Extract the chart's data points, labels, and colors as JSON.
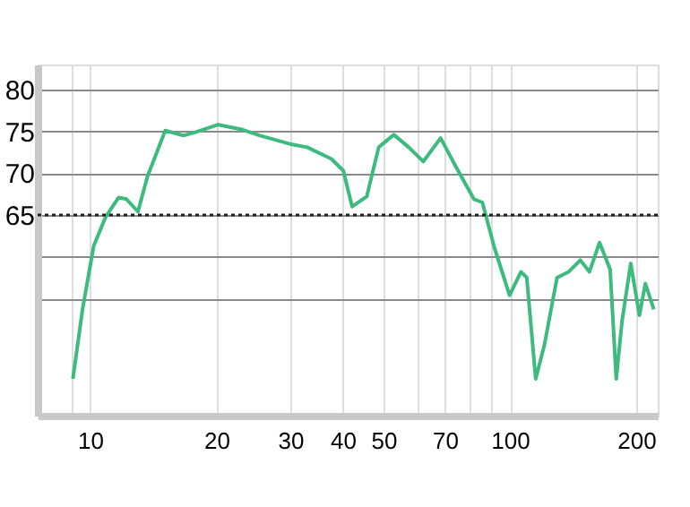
{
  "chart_data": {
    "type": "line",
    "xlim": [
      7.5,
      225
    ],
    "ylim": [
      41,
      83
    ],
    "log": "x",
    "grid": true,
    "marker": "none",
    "line_style": "solid",
    "xticks": [
      {
        "value": 9,
        "label": null
      },
      10,
      20,
      30,
      40,
      50,
      {
        "value": 60,
        "label": null
      },
      70,
      {
        "value": 80,
        "label": null
      },
      {
        "value": 90,
        "label": null
      },
      100,
      200
    ],
    "yticks": [
      {
        "value": 55,
        "label": null
      },
      {
        "value": 60,
        "label": null
      },
      65,
      70,
      75,
      80
    ],
    "ref_lines": [
      {
        "axis": "y",
        "value": 65,
        "label": null,
        "color": "#222222",
        "line_style": "dotted"
      }
    ],
    "series": [
      {
        "color": "#3dbb7f",
        "x": [
          9.1,
          9.6,
          10.2,
          10.9,
          11.7,
          12.2,
          13.0,
          13.7,
          15.1,
          16.7,
          17.8,
          20.2,
          23.1,
          25.4,
          29.9,
          32.9,
          37.6,
          40.1,
          42.1,
          45.6,
          48.7,
          52.9,
          57.4,
          62.2,
          68.4,
          74.5,
          82.1,
          86.0,
          91.6,
          99.8,
          106.3,
          109.7,
          115.2,
          120.9,
          129.5,
          138.0,
          147.2,
          154.7,
          163.5,
          173.3,
          179.2,
          185.0,
          194.0,
          203.5,
          210.2,
          220.2
        ],
        "values": [
          45.4,
          53.8,
          61.3,
          64.8,
          67.1,
          66.9,
          65.4,
          69.6,
          75.1,
          74.5,
          74.9,
          75.8,
          75.2,
          74.5,
          73.5,
          73.1,
          71.7,
          70.3,
          66.0,
          67.2,
          73.1,
          74.6,
          73.1,
          71.4,
          74.2,
          70.7,
          66.9,
          66.5,
          61.3,
          55.4,
          58.2,
          57.5,
          45.4,
          49.5,
          57.5,
          58.2,
          59.6,
          58.2,
          61.7,
          58.5,
          45.4,
          52.3,
          59.2,
          53.0,
          56.8,
          53.7
        ]
      }
    ]
  }
}
